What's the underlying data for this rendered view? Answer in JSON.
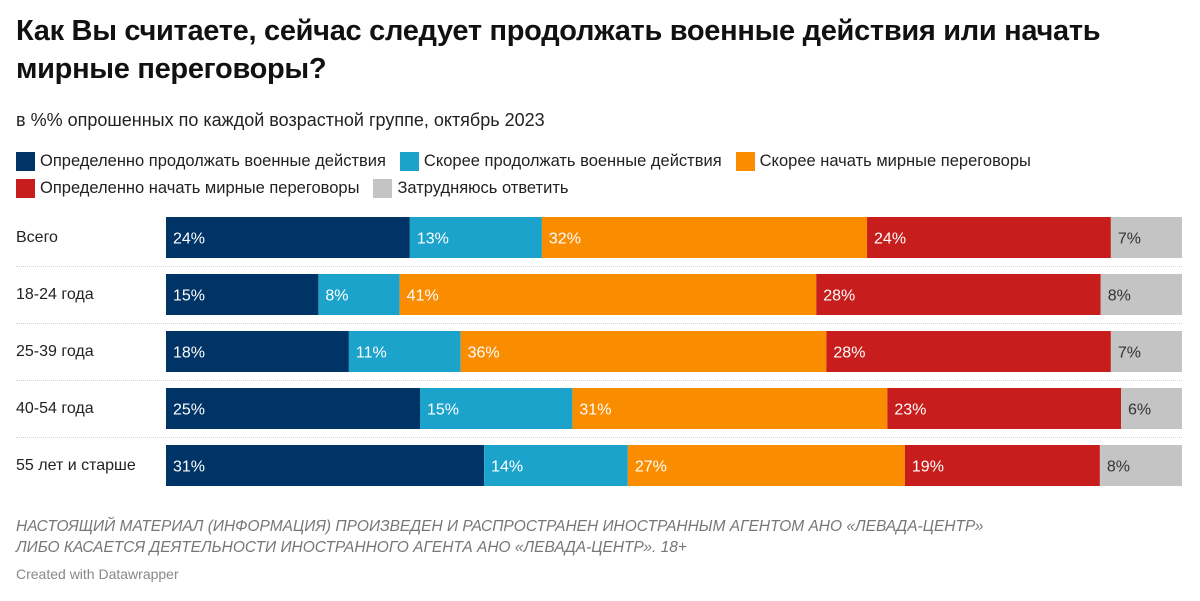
{
  "title": "Как Вы считаете, сейчас следует продолжать военные действия или начать мирные переговоры?",
  "subtitle": "в %% опрошенных по каждой возрастной группе, октябрь 2023",
  "note_lines": [
    "НАСТОЯЩИЙ МАТЕРИАЛ (ИНФОРМАЦИЯ) ПРОИЗВЕДЕН И РАСПРОСТРАНЕН ИНОСТРАННЫМ АГЕНТОМ АНО «ЛЕВАДА-ЦЕНТР»",
    "ЛИБО КАСАЕТСЯ ДЕЯТЕЛЬНОСТИ ИНОСТРАННОГО АГЕНТА АНО «ЛЕВАДА-ЦЕНТР». 18+"
  ],
  "credit": "Created with Datawrapper",
  "chart_data": {
    "type": "bar",
    "orientation": "horizontal",
    "stacked": true,
    "title": "Как Вы считаете, сейчас следует продолжать военные действия или начать мирные переговоры?",
    "subtitle": "в %% опрошенных по каждой возрастной группе, октябрь 2023",
    "xlabel": "",
    "ylabel": "",
    "xlim": [
      0,
      100
    ],
    "legend_position": "top",
    "value_suffix": "%",
    "categories": [
      "Всего",
      "18-24 года",
      "25-39 года",
      "40-54 года",
      "55 лет и старше"
    ],
    "series": [
      {
        "name": "Определенно продолжать военные действия",
        "color": "#003366",
        "label_color": "#ffffff",
        "values": [
          24,
          15,
          18,
          25,
          31
        ]
      },
      {
        "name": "Скорее продолжать военные действия",
        "color": "#1ba3cc",
        "label_color": "#ffffff",
        "values": [
          13,
          8,
          11,
          15,
          14
        ]
      },
      {
        "name": "Скорее начать мирные переговоры",
        "color": "#fa8c00",
        "label_color": "#ffffff",
        "values": [
          32,
          41,
          36,
          31,
          27
        ]
      },
      {
        "name": "Определенно начать мирные переговоры",
        "color": "#c71e1d",
        "label_color": "#ffffff",
        "values": [
          24,
          28,
          28,
          23,
          19
        ]
      },
      {
        "name": "Затрудняюсь ответить",
        "color": "#c4c4c4",
        "label_color": "#333333",
        "values": [
          7,
          8,
          7,
          6,
          8
        ]
      }
    ]
  }
}
